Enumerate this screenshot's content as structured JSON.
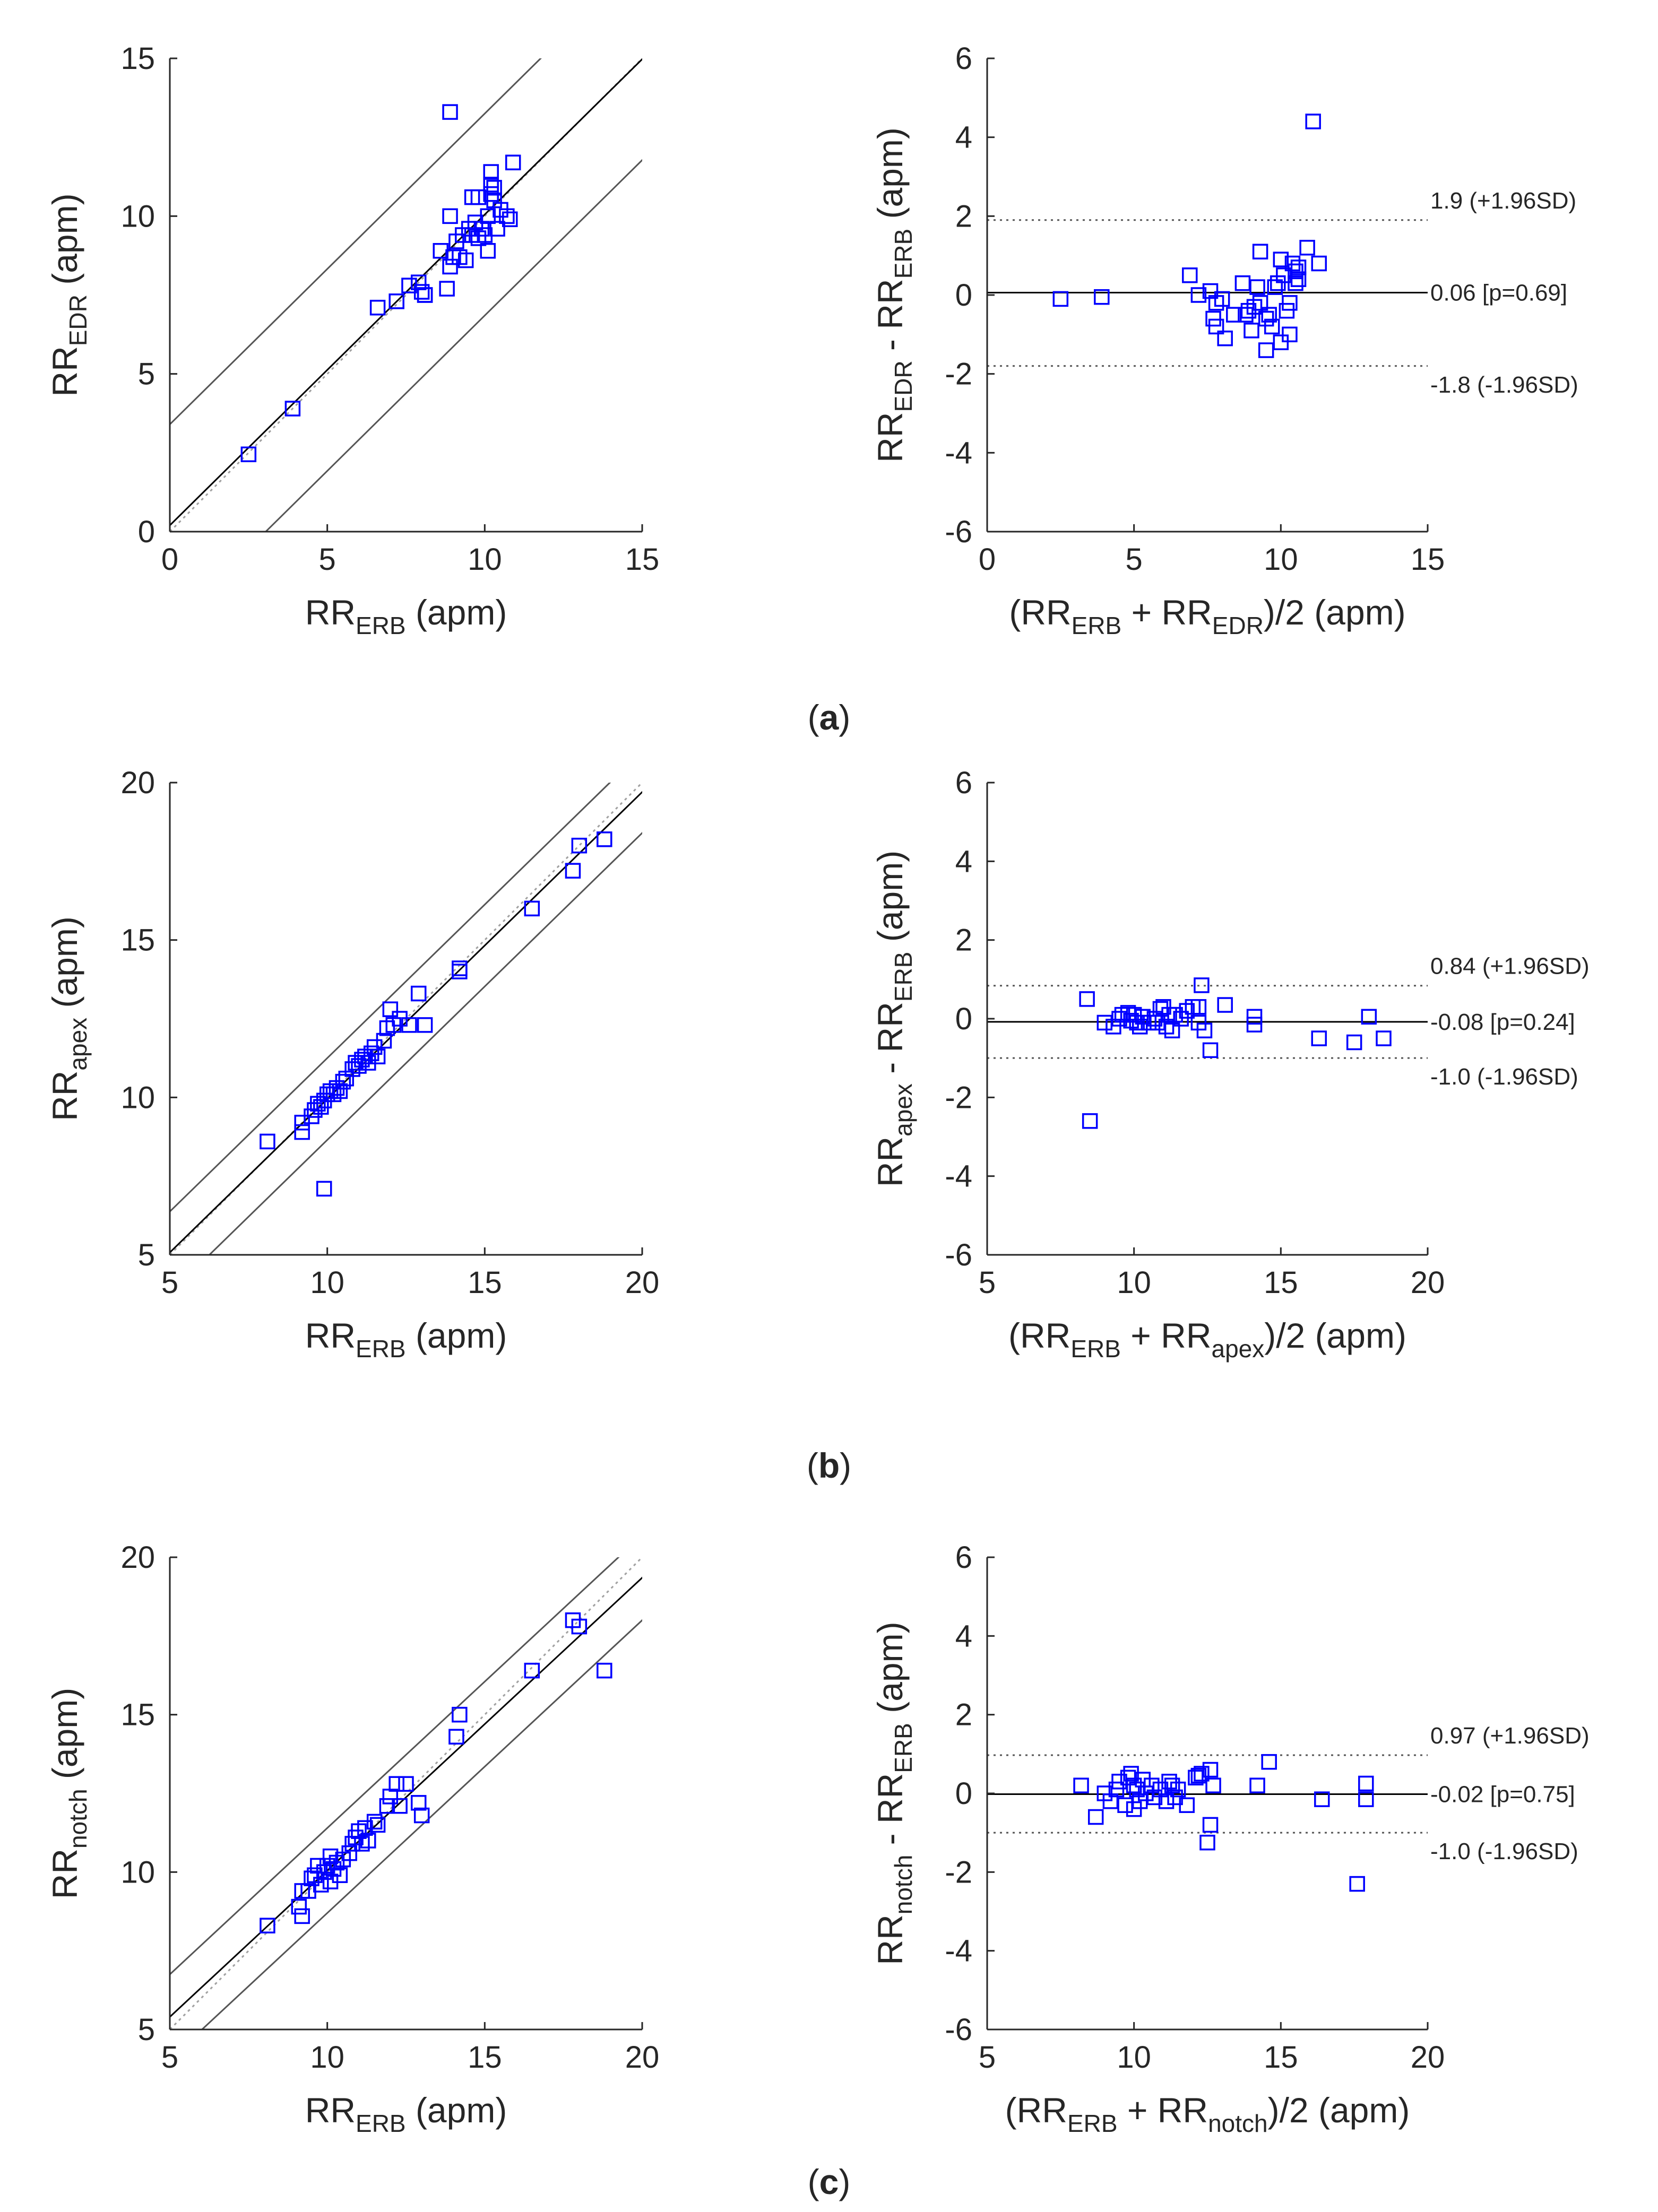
{
  "colors": {
    "marker": "#0000ff",
    "axis": "#262626",
    "identity": "#a0a0a0",
    "bands": "#555555"
  },
  "panels": [
    {
      "label": "a",
      "left": {
        "type": "scatter",
        "xlim": [
          0,
          15
        ],
        "ylim": [
          0,
          15
        ],
        "xticks": [
          0,
          5,
          10,
          15
        ],
        "yticks": [
          0,
          5,
          10,
          15
        ],
        "xlabel": {
          "base": "RR",
          "sub": "ERB",
          "suffix": " (apm)"
        },
        "ylabel": {
          "base": "RR",
          "sub": "EDR",
          "suffix": " (apm)"
        },
        "fit": {
          "slope": 0.985,
          "intercept": 0.2
        },
        "band_half_width": 3.2,
        "points": [
          [
            2.5,
            2.45
          ],
          [
            3.9,
            3.9
          ],
          [
            6.6,
            7.1
          ],
          [
            7.2,
            7.3
          ],
          [
            7.6,
            7.8
          ],
          [
            7.9,
            7.9
          ],
          [
            8.0,
            7.6
          ],
          [
            8.1,
            7.5
          ],
          [
            8.6,
            8.9
          ],
          [
            8.8,
            7.7
          ],
          [
            8.9,
            8.4
          ],
          [
            9.0,
            8.7
          ],
          [
            8.9,
            10.0
          ],
          [
            9.1,
            9.2
          ],
          [
            9.2,
            8.7
          ],
          [
            9.3,
            9.4
          ],
          [
            9.4,
            8.6
          ],
          [
            9.5,
            9.6
          ],
          [
            9.6,
            9.4
          ],
          [
            9.6,
            10.6
          ],
          [
            9.7,
            9.8
          ],
          [
            9.8,
            10.6
          ],
          [
            9.8,
            9.3
          ],
          [
            9.9,
            9.6
          ],
          [
            10.0,
            9.4
          ],
          [
            10.1,
            8.9
          ],
          [
            10.1,
            10.0
          ],
          [
            10.2,
            11.0
          ],
          [
            10.2,
            10.7
          ],
          [
            10.2,
            11.4
          ],
          [
            10.3,
            10.9
          ],
          [
            10.3,
            10.5
          ],
          [
            10.4,
            9.6
          ],
          [
            10.5,
            10.2
          ],
          [
            10.7,
            10.0
          ],
          [
            10.8,
            9.9
          ],
          [
            10.9,
            11.7
          ],
          [
            8.9,
            13.3
          ],
          [
            8.1,
            7.5
          ]
        ]
      },
      "right": {
        "type": "scatter",
        "xlim": [
          0,
          15
        ],
        "ylim": [
          -6,
          6
        ],
        "xticks": [
          0,
          5,
          10,
          15
        ],
        "yticks": [
          -6,
          -4,
          -2,
          0,
          2,
          4,
          6
        ],
        "xlabel": {
          "pre": "(RR",
          "sub1": "ERB",
          "mid": " + RR",
          "sub2": "EDR",
          "post": ")/2 (apm)"
        },
        "ylabel": {
          "base1": "RR",
          "sub1": "EDR",
          "mid": " - RR",
          "sub2": "ERB",
          "suffix": " (apm)"
        },
        "mean": 0.06,
        "upper": 1.9,
        "lower": -1.8,
        "upper_text": "1.9 (+1.96SD)",
        "mean_text": "0.06 [p=0.69]",
        "lower_text": "-1.8 (-1.96SD)",
        "points": [
          [
            2.5,
            -0.1
          ],
          [
            3.9,
            -0.05
          ],
          [
            6.9,
            0.5
          ],
          [
            7.2,
            0.0
          ],
          [
            7.6,
            0.1
          ],
          [
            7.7,
            -0.6
          ],
          [
            7.8,
            -0.8
          ],
          [
            7.8,
            -0.2
          ],
          [
            8.0,
            -0.1
          ],
          [
            8.1,
            -1.1
          ],
          [
            8.4,
            -0.5
          ],
          [
            8.7,
            0.3
          ],
          [
            8.8,
            -0.5
          ],
          [
            8.9,
            -0.4
          ],
          [
            9.0,
            -0.9
          ],
          [
            9.1,
            -0.3
          ],
          [
            9.2,
            0.2
          ],
          [
            9.3,
            1.1
          ],
          [
            9.3,
            -0.2
          ],
          [
            9.5,
            -0.6
          ],
          [
            9.5,
            -1.4
          ],
          [
            9.6,
            -0.5
          ],
          [
            9.7,
            -0.8
          ],
          [
            9.8,
            0.2
          ],
          [
            9.9,
            0.3
          ],
          [
            10.0,
            0.9
          ],
          [
            10.0,
            -1.2
          ],
          [
            10.1,
            0.5
          ],
          [
            10.2,
            -0.4
          ],
          [
            10.3,
            -1.0
          ],
          [
            10.3,
            -0.2
          ],
          [
            10.4,
            0.8
          ],
          [
            10.5,
            0.6
          ],
          [
            10.5,
            0.3
          ],
          [
            10.6,
            0.4
          ],
          [
            10.6,
            0.7
          ],
          [
            10.9,
            1.2
          ],
          [
            11.1,
            4.4
          ],
          [
            11.3,
            0.8
          ]
        ]
      }
    },
    {
      "label": "b",
      "left": {
        "type": "scatter",
        "xlim": [
          5,
          20
        ],
        "ylim": [
          5,
          20
        ],
        "xticks": [
          5,
          10,
          15,
          20
        ],
        "yticks": [
          5,
          10,
          15,
          20
        ],
        "xlabel": {
          "base": "RR",
          "sub": "ERB",
          "suffix": " (apm)"
        },
        "ylabel": {
          "base": "RR",
          "sub": "apex",
          "suffix": " (apm)"
        },
        "fit": {
          "slope": 0.975,
          "intercept": 0.2
        },
        "band_half_width": 1.3,
        "points": [
          [
            8.1,
            8.6
          ],
          [
            9.2,
            8.9
          ],
          [
            9.2,
            9.2
          ],
          [
            9.5,
            9.4
          ],
          [
            9.6,
            9.6
          ],
          [
            9.7,
            9.8
          ],
          [
            9.8,
            9.7
          ],
          [
            9.9,
            9.9
          ],
          [
            10.0,
            10.1
          ],
          [
            10.1,
            10.2
          ],
          [
            10.2,
            10.1
          ],
          [
            10.3,
            10.3
          ],
          [
            10.4,
            10.2
          ],
          [
            10.5,
            10.5
          ],
          [
            10.6,
            10.6
          ],
          [
            10.8,
            10.9
          ],
          [
            10.9,
            11.1
          ],
          [
            11.0,
            11.0
          ],
          [
            11.1,
            11.2
          ],
          [
            11.2,
            11.3
          ],
          [
            11.3,
            11.1
          ],
          [
            11.4,
            11.4
          ],
          [
            11.5,
            11.6
          ],
          [
            11.6,
            11.3
          ],
          [
            11.8,
            11.8
          ],
          [
            11.9,
            12.2
          ],
          [
            12.0,
            12.8
          ],
          [
            12.1,
            12.3
          ],
          [
            12.3,
            12.5
          ],
          [
            12.6,
            12.3
          ],
          [
            12.9,
            13.3
          ],
          [
            13.1,
            12.3
          ],
          [
            14.2,
            14.1
          ],
          [
            14.2,
            14.0
          ],
          [
            16.5,
            16.0
          ],
          [
            17.8,
            17.2
          ],
          [
            18.0,
            18.0
          ],
          [
            18.8,
            18.2
          ],
          [
            9.9,
            7.1
          ]
        ]
      },
      "right": {
        "type": "scatter",
        "xlim": [
          5,
          20
        ],
        "ylim": [
          -6,
          6
        ],
        "xticks": [
          5,
          10,
          15,
          20
        ],
        "yticks": [
          -6,
          -4,
          -2,
          0,
          2,
          4,
          6
        ],
        "xlabel": {
          "pre": "(RR",
          "sub1": "ERB",
          "mid": " + RR",
          "sub2": "apex",
          "post": ")/2 (apm)"
        },
        "ylabel": {
          "base1": "RR",
          "sub1": "apex",
          "mid": " - RR",
          "sub2": "ERB",
          "suffix": " (apm)"
        },
        "mean": -0.08,
        "upper": 0.84,
        "lower": -1.0,
        "upper_text": "0.84 (+1.96SD)",
        "mean_text": "-0.08 [p=0.24]",
        "lower_text": "-1.0 (-1.96SD)",
        "points": [
          [
            8.4,
            0.5
          ],
          [
            8.5,
            -2.6
          ],
          [
            9.0,
            -0.1
          ],
          [
            9.3,
            -0.2
          ],
          [
            9.5,
            0.0
          ],
          [
            9.6,
            0.1
          ],
          [
            9.8,
            0.15
          ],
          [
            9.9,
            -0.05
          ],
          [
            10.0,
            0.1
          ],
          [
            10.1,
            -0.1
          ],
          [
            10.2,
            -0.2
          ],
          [
            10.3,
            0.05
          ],
          [
            10.5,
            -0.1
          ],
          [
            10.7,
            0.0
          ],
          [
            10.8,
            -0.1
          ],
          [
            10.9,
            0.25
          ],
          [
            11.0,
            0.3
          ],
          [
            11.1,
            -0.2
          ],
          [
            11.2,
            0.1
          ],
          [
            11.3,
            -0.3
          ],
          [
            11.4,
            0.1
          ],
          [
            11.6,
            0.0
          ],
          [
            11.8,
            0.2
          ],
          [
            12.0,
            0.3
          ],
          [
            12.2,
            -0.1
          ],
          [
            12.3,
            0.85
          ],
          [
            12.4,
            -0.3
          ],
          [
            12.6,
            -0.8
          ],
          [
            13.1,
            0.35
          ],
          [
            14.1,
            0.05
          ],
          [
            14.1,
            -0.15
          ],
          [
            16.3,
            -0.5
          ],
          [
            17.5,
            -0.6
          ],
          [
            18.0,
            0.05
          ],
          [
            18.5,
            -0.5
          ],
          [
            12.2,
            0.3
          ]
        ]
      }
    },
    {
      "label": "c",
      "left": {
        "type": "scatter",
        "xlim": [
          5,
          20
        ],
        "ylim": [
          5,
          20
        ],
        "xticks": [
          5,
          10,
          15,
          20
        ],
        "yticks": [
          5,
          10,
          15,
          20
        ],
        "xlabel": {
          "base": "RR",
          "sub": "ERB",
          "suffix": " (apm)"
        },
        "ylabel": {
          "base": "RR",
          "sub": "notch",
          "suffix": " (apm)"
        },
        "fit": {
          "slope": 0.93,
          "intercept": 0.75
        },
        "band_half_width": 1.35,
        "points": [
          [
            8.1,
            8.3
          ],
          [
            9.1,
            8.9
          ],
          [
            9.2,
            8.6
          ],
          [
            9.2,
            9.4
          ],
          [
            9.4,
            9.4
          ],
          [
            9.5,
            9.8
          ],
          [
            9.6,
            9.9
          ],
          [
            9.7,
            10.2
          ],
          [
            9.8,
            9.6
          ],
          [
            9.9,
            10.0
          ],
          [
            10.0,
            10.2
          ],
          [
            10.1,
            9.7
          ],
          [
            10.1,
            10.5
          ],
          [
            10.2,
            10.1
          ],
          [
            10.3,
            10.3
          ],
          [
            10.4,
            9.9
          ],
          [
            10.5,
            10.4
          ],
          [
            10.7,
            10.6
          ],
          [
            10.8,
            10.9
          ],
          [
            10.9,
            11.1
          ],
          [
            11.0,
            11.3
          ],
          [
            11.1,
            10.9
          ],
          [
            11.2,
            11.4
          ],
          [
            11.3,
            11.0
          ],
          [
            11.5,
            11.6
          ],
          [
            11.6,
            11.5
          ],
          [
            11.9,
            12.1
          ],
          [
            12.0,
            12.4
          ],
          [
            12.2,
            12.8
          ],
          [
            12.3,
            12.1
          ],
          [
            12.5,
            12.8
          ],
          [
            12.9,
            12.2
          ],
          [
            13.0,
            11.8
          ],
          [
            14.1,
            14.3
          ],
          [
            14.2,
            15.0
          ],
          [
            16.5,
            16.4
          ],
          [
            17.8,
            18.0
          ],
          [
            18.0,
            17.8
          ],
          [
            18.8,
            16.4
          ]
        ]
      },
      "right": {
        "type": "scatter",
        "xlim": [
          5,
          20
        ],
        "ylim": [
          -6,
          6
        ],
        "xticks": [
          5,
          10,
          15,
          20
        ],
        "yticks": [
          -6,
          -4,
          -2,
          0,
          2,
          4,
          6
        ],
        "xlabel": {
          "pre": "(RR",
          "sub1": "ERB",
          "mid": " + RR",
          "sub2": "notch",
          "post": ")/2 (apm)"
        },
        "ylabel": {
          "base1": "RR",
          "sub1": "notch",
          "mid": " - RR",
          "sub2": "ERB",
          "suffix": " (apm)"
        },
        "mean": -0.02,
        "upper": 0.97,
        "lower": -1.0,
        "upper_text": "0.97 (+1.96SD)",
        "mean_text": "-0.02 [p=0.75]",
        "lower_text": "-1.0 (-1.96SD)",
        "points": [
          [
            8.2,
            0.2
          ],
          [
            8.7,
            -0.6
          ],
          [
            9.0,
            0.0
          ],
          [
            9.2,
            -0.2
          ],
          [
            9.4,
            0.1
          ],
          [
            9.5,
            0.3
          ],
          [
            9.7,
            -0.3
          ],
          [
            9.8,
            0.4
          ],
          [
            9.9,
            0.5
          ],
          [
            10.0,
            0.2
          ],
          [
            10.0,
            -0.4
          ],
          [
            10.1,
            0.1
          ],
          [
            10.2,
            -0.2
          ],
          [
            10.3,
            0.35
          ],
          [
            10.4,
            0.0
          ],
          [
            10.6,
            0.2
          ],
          [
            10.7,
            -0.1
          ],
          [
            10.9,
            0.1
          ],
          [
            11.1,
            -0.2
          ],
          [
            11.2,
            0.3
          ],
          [
            11.3,
            0.2
          ],
          [
            11.4,
            -0.1
          ],
          [
            11.5,
            0.1
          ],
          [
            11.8,
            -0.3
          ],
          [
            12.1,
            0.4
          ],
          [
            12.3,
            0.5
          ],
          [
            12.5,
            -1.25
          ],
          [
            12.6,
            0.6
          ],
          [
            12.6,
            -0.8
          ],
          [
            12.7,
            0.2
          ],
          [
            14.2,
            0.2
          ],
          [
            14.6,
            0.8
          ],
          [
            16.4,
            -0.15
          ],
          [
            17.6,
            -2.3
          ],
          [
            17.9,
            0.25
          ],
          [
            17.9,
            -0.15
          ],
          [
            12.2,
            0.45
          ]
        ]
      }
    }
  ]
}
